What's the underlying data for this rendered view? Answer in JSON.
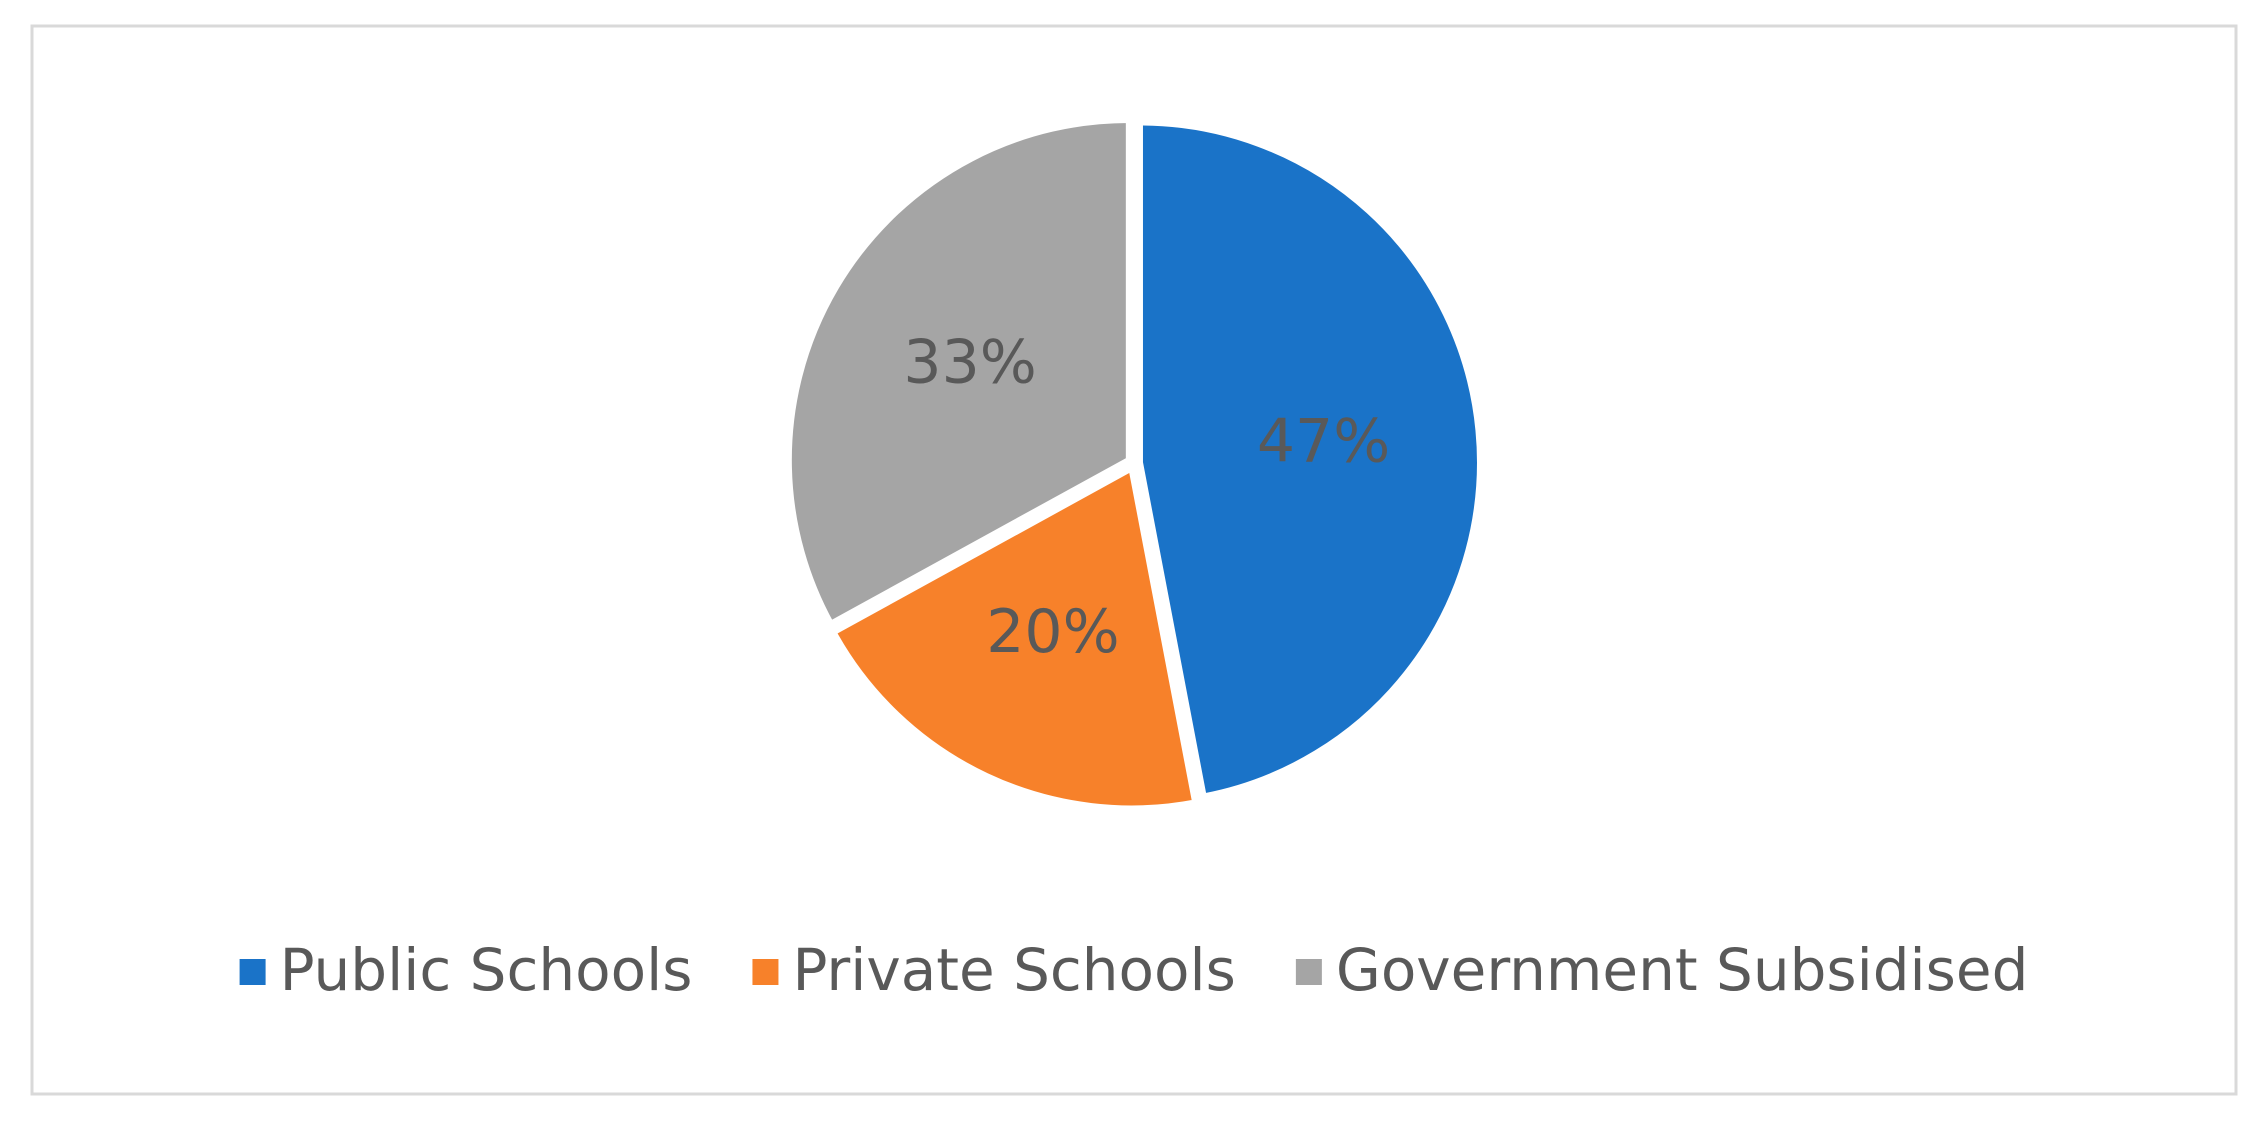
{
  "chart_data": {
    "type": "pie",
    "categories": [
      "Public Schools",
      "Private Schools",
      "Government Subsidised"
    ],
    "values": [
      47,
      20,
      33
    ],
    "value_labels": [
      "47%",
      "20%",
      "33%"
    ],
    "colors": [
      "#1a73c8",
      "#f7812a",
      "#a5a5a5"
    ],
    "legend": "bottom"
  }
}
